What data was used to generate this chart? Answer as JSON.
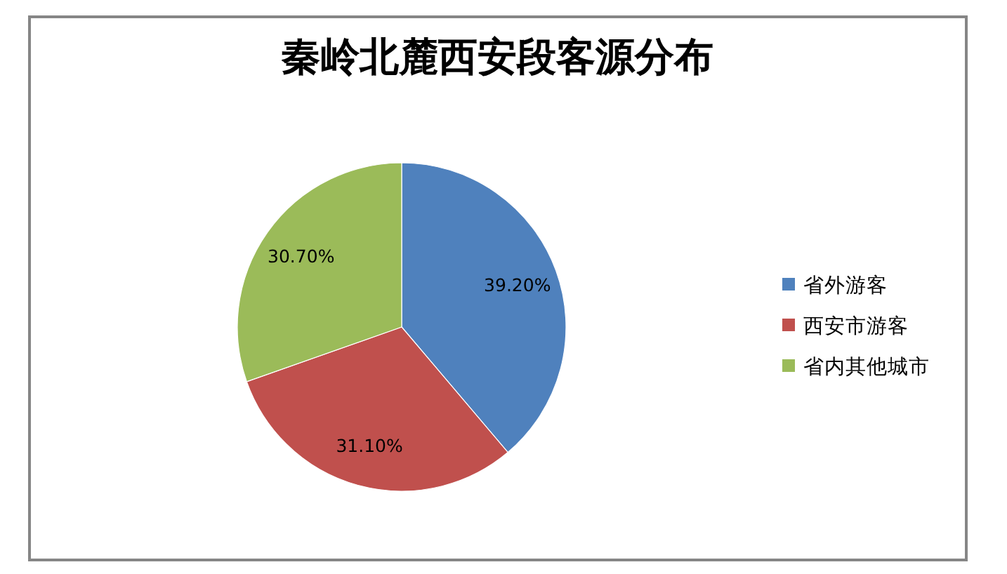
{
  "chart_data": {
    "type": "pie",
    "title": "秦岭北麓西安段客源分布",
    "categories": [
      "省外游客",
      "西安市游客",
      "省内其他城市"
    ],
    "values": [
      39.2,
      31.1,
      30.7
    ],
    "colors": [
      "#4f81bd",
      "#c0504d",
      "#9bbb59"
    ],
    "value_labels": [
      "39.20%",
      "31.10%",
      "30.70%"
    ],
    "legend": "right"
  }
}
